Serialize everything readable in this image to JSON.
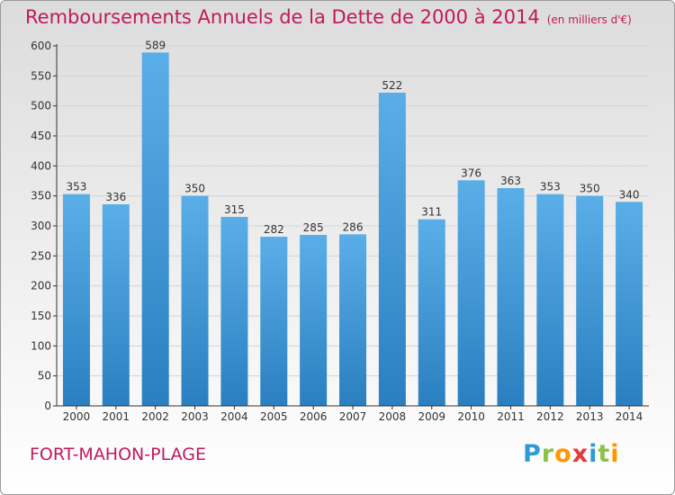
{
  "title": "Remboursements Annuels de la Dette de 2000 à 2014",
  "subtitle": "(en milliers d'€)",
  "city": "FORT-MAHON-PLAGE",
  "brand": {
    "letters": [
      "P",
      "r",
      "o",
      "x",
      "i",
      "t",
      "i"
    ],
    "colors": [
      "#2e9bd6",
      "#8bc34a",
      "#ff9800",
      "#e53935",
      "#2e9bd6",
      "#8bc34a",
      "#ff9800"
    ]
  },
  "colors": {
    "title": "#c2185b",
    "bar_top": "#5aaee8",
    "bar_bottom": "#2a7fc0",
    "grid": "#d4d4d4",
    "axis": "#333333"
  },
  "chart_data": {
    "type": "bar",
    "categories": [
      "2000",
      "2001",
      "2002",
      "2003",
      "2004",
      "2005",
      "2006",
      "2007",
      "2008",
      "2009",
      "2010",
      "2011",
      "2012",
      "2013",
      "2014"
    ],
    "values": [
      353,
      336,
      589,
      350,
      315,
      282,
      285,
      286,
      522,
      311,
      376,
      363,
      353,
      350,
      340
    ],
    "ylim": [
      0,
      600
    ],
    "yticks": [
      0,
      50,
      100,
      150,
      200,
      250,
      300,
      350,
      400,
      450,
      500,
      550,
      600
    ],
    "grid": true,
    "data_labels": true
  }
}
